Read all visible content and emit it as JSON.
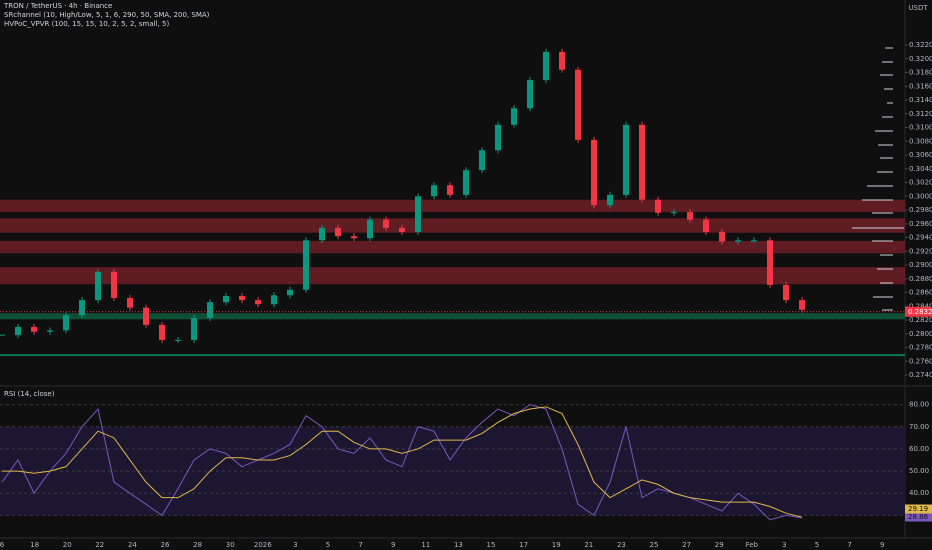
{
  "chart_data": [
    {
      "type": "candlestick",
      "title": "TRON / TetherUS · 4h · Binance",
      "indicators": [
        "SRchannel (10, High/Low, 5, 1, 6, 290, 50, SMA, 200, SMA)",
        "HVPoC_VPVR (100, 15, 15, 10, 2, 5, 2, small, 5)"
      ],
      "currency": "USDT",
      "categories": [
        "6",
        "18",
        "20",
        "22",
        "24",
        "26",
        "28",
        "30",
        "2026",
        "3",
        "5",
        "7",
        "9",
        "11",
        "13",
        "15",
        "17",
        "19",
        "21",
        "23",
        "25",
        "27",
        "29",
        "Feb",
        "3",
        "5",
        "7",
        "9"
      ],
      "up_color": "#089981",
      "down_color": "#f23645",
      "closes": [
        0.2798,
        0.281,
        0.2803,
        0.2805,
        0.2827,
        0.2849,
        0.289,
        0.2852,
        0.2838,
        0.2813,
        0.2791,
        0.2791,
        0.2823,
        0.2846,
        0.2855,
        0.2849,
        0.2843,
        0.2856,
        0.2864,
        0.2936,
        0.2954,
        0.2942,
        0.2939,
        0.2966,
        0.2954,
        0.2948,
        0.3,
        0.3016,
        0.3002,
        0.3038,
        0.3067,
        0.3104,
        0.3128,
        0.3169,
        0.321,
        0.3184,
        0.3082,
        0.2987,
        0.3002,
        0.3104,
        0.2995,
        0.2976,
        0.2977,
        0.2966,
        0.2948,
        0.2934,
        0.2936,
        0.2936,
        0.2871,
        0.2849,
        0.2835
      ],
      "zones": [
        {
          "low": 0.2977,
          "high": 0.2995,
          "color": "#6e1f27"
        },
        {
          "low": 0.2947,
          "high": 0.2968,
          "color": "#6e1f27"
        },
        {
          "low": 0.2917,
          "high": 0.2935,
          "color": "#6e1f27"
        },
        {
          "low": 0.2872,
          "high": 0.2897,
          "color": "#6e1f27"
        },
        {
          "low": 0.2821,
          "high": 0.283,
          "color": "#0d5c3c"
        }
      ],
      "support_line": 0.2769,
      "last_price": 0.2832,
      "ylim": [
        0.27255,
        0.32855
      ],
      "yticks": [
        {
          "value": 0.322,
          "label": "0.3220"
        },
        {
          "value": 0.32,
          "label": "0.3200"
        },
        {
          "value": 0.318,
          "label": "0.3180"
        },
        {
          "value": 0.316,
          "label": "0.3160"
        },
        {
          "value": 0.314,
          "label": "0.3140"
        },
        {
          "value": 0.312,
          "label": "0.3120"
        },
        {
          "value": 0.31,
          "label": "0.3100"
        },
        {
          "value": 0.308,
          "label": "0.3080"
        },
        {
          "value": 0.306,
          "label": "0.3060"
        },
        {
          "value": 0.304,
          "label": "0.3040"
        },
        {
          "value": 0.302,
          "label": "0.3020"
        },
        {
          "value": 0.3,
          "label": "0.3000"
        },
        {
          "value": 0.298,
          "label": "0.2980"
        },
        {
          "value": 0.296,
          "label": "0.2960"
        },
        {
          "value": 0.294,
          "label": "0.2940"
        },
        {
          "value": 0.292,
          "label": "0.2920"
        },
        {
          "value": 0.29,
          "label": "0.2900"
        },
        {
          "value": 0.288,
          "label": "0.2880"
        },
        {
          "value": 0.286,
          "label": "0.2860"
        },
        {
          "value": 0.284,
          "label": "0.2840"
        },
        {
          "value": 0.282,
          "label": "0.2820"
        },
        {
          "value": 0.28,
          "label": "0.2800"
        },
        {
          "value": 0.278,
          "label": "0.2780"
        },
        {
          "value": 0.276,
          "label": "0.2760"
        },
        {
          "value": 0.274,
          "label": "0.2740"
        }
      ]
    },
    {
      "type": "line",
      "title": "RSI (14, close)",
      "series": [
        {
          "color": "#7e57c2",
          "values": [
            45,
            55,
            40,
            50,
            58,
            70,
            78,
            45,
            40,
            35,
            30,
            42,
            55,
            60,
            58,
            52,
            55,
            58,
            62,
            75,
            70,
            60,
            58,
            65,
            55,
            52,
            70,
            68,
            55,
            65,
            72,
            78,
            75,
            80,
            78,
            60,
            35,
            30,
            45,
            70,
            38,
            42,
            40,
            38,
            35,
            32,
            40,
            35,
            28,
            30,
            28.86
          ]
        },
        {
          "color": "#e0b84a",
          "values": [
            50,
            50,
            49,
            50,
            52,
            60,
            68,
            65,
            55,
            45,
            38,
            38,
            42,
            50,
            56,
            56,
            55,
            55,
            57,
            62,
            68,
            68,
            63,
            60,
            60,
            58,
            60,
            64,
            64,
            64,
            67,
            72,
            76,
            78,
            79,
            76,
            62,
            45,
            38,
            42,
            46,
            44,
            40,
            38,
            37,
            36,
            36,
            36,
            34,
            31,
            29.19
          ]
        }
      ],
      "band": [
        30,
        70
      ],
      "ylim": [
        20.7,
        87.5
      ],
      "yticks": [
        {
          "value": 80,
          "label": "80.00"
        },
        {
          "value": 70,
          "label": "70.00"
        },
        {
          "value": 60,
          "label": "60.00"
        },
        {
          "value": 50,
          "label": "50.00"
        },
        {
          "value": 40,
          "label": "40.00"
        },
        {
          "value": 30,
          "label": "30.00"
        }
      ]
    }
  ]
}
